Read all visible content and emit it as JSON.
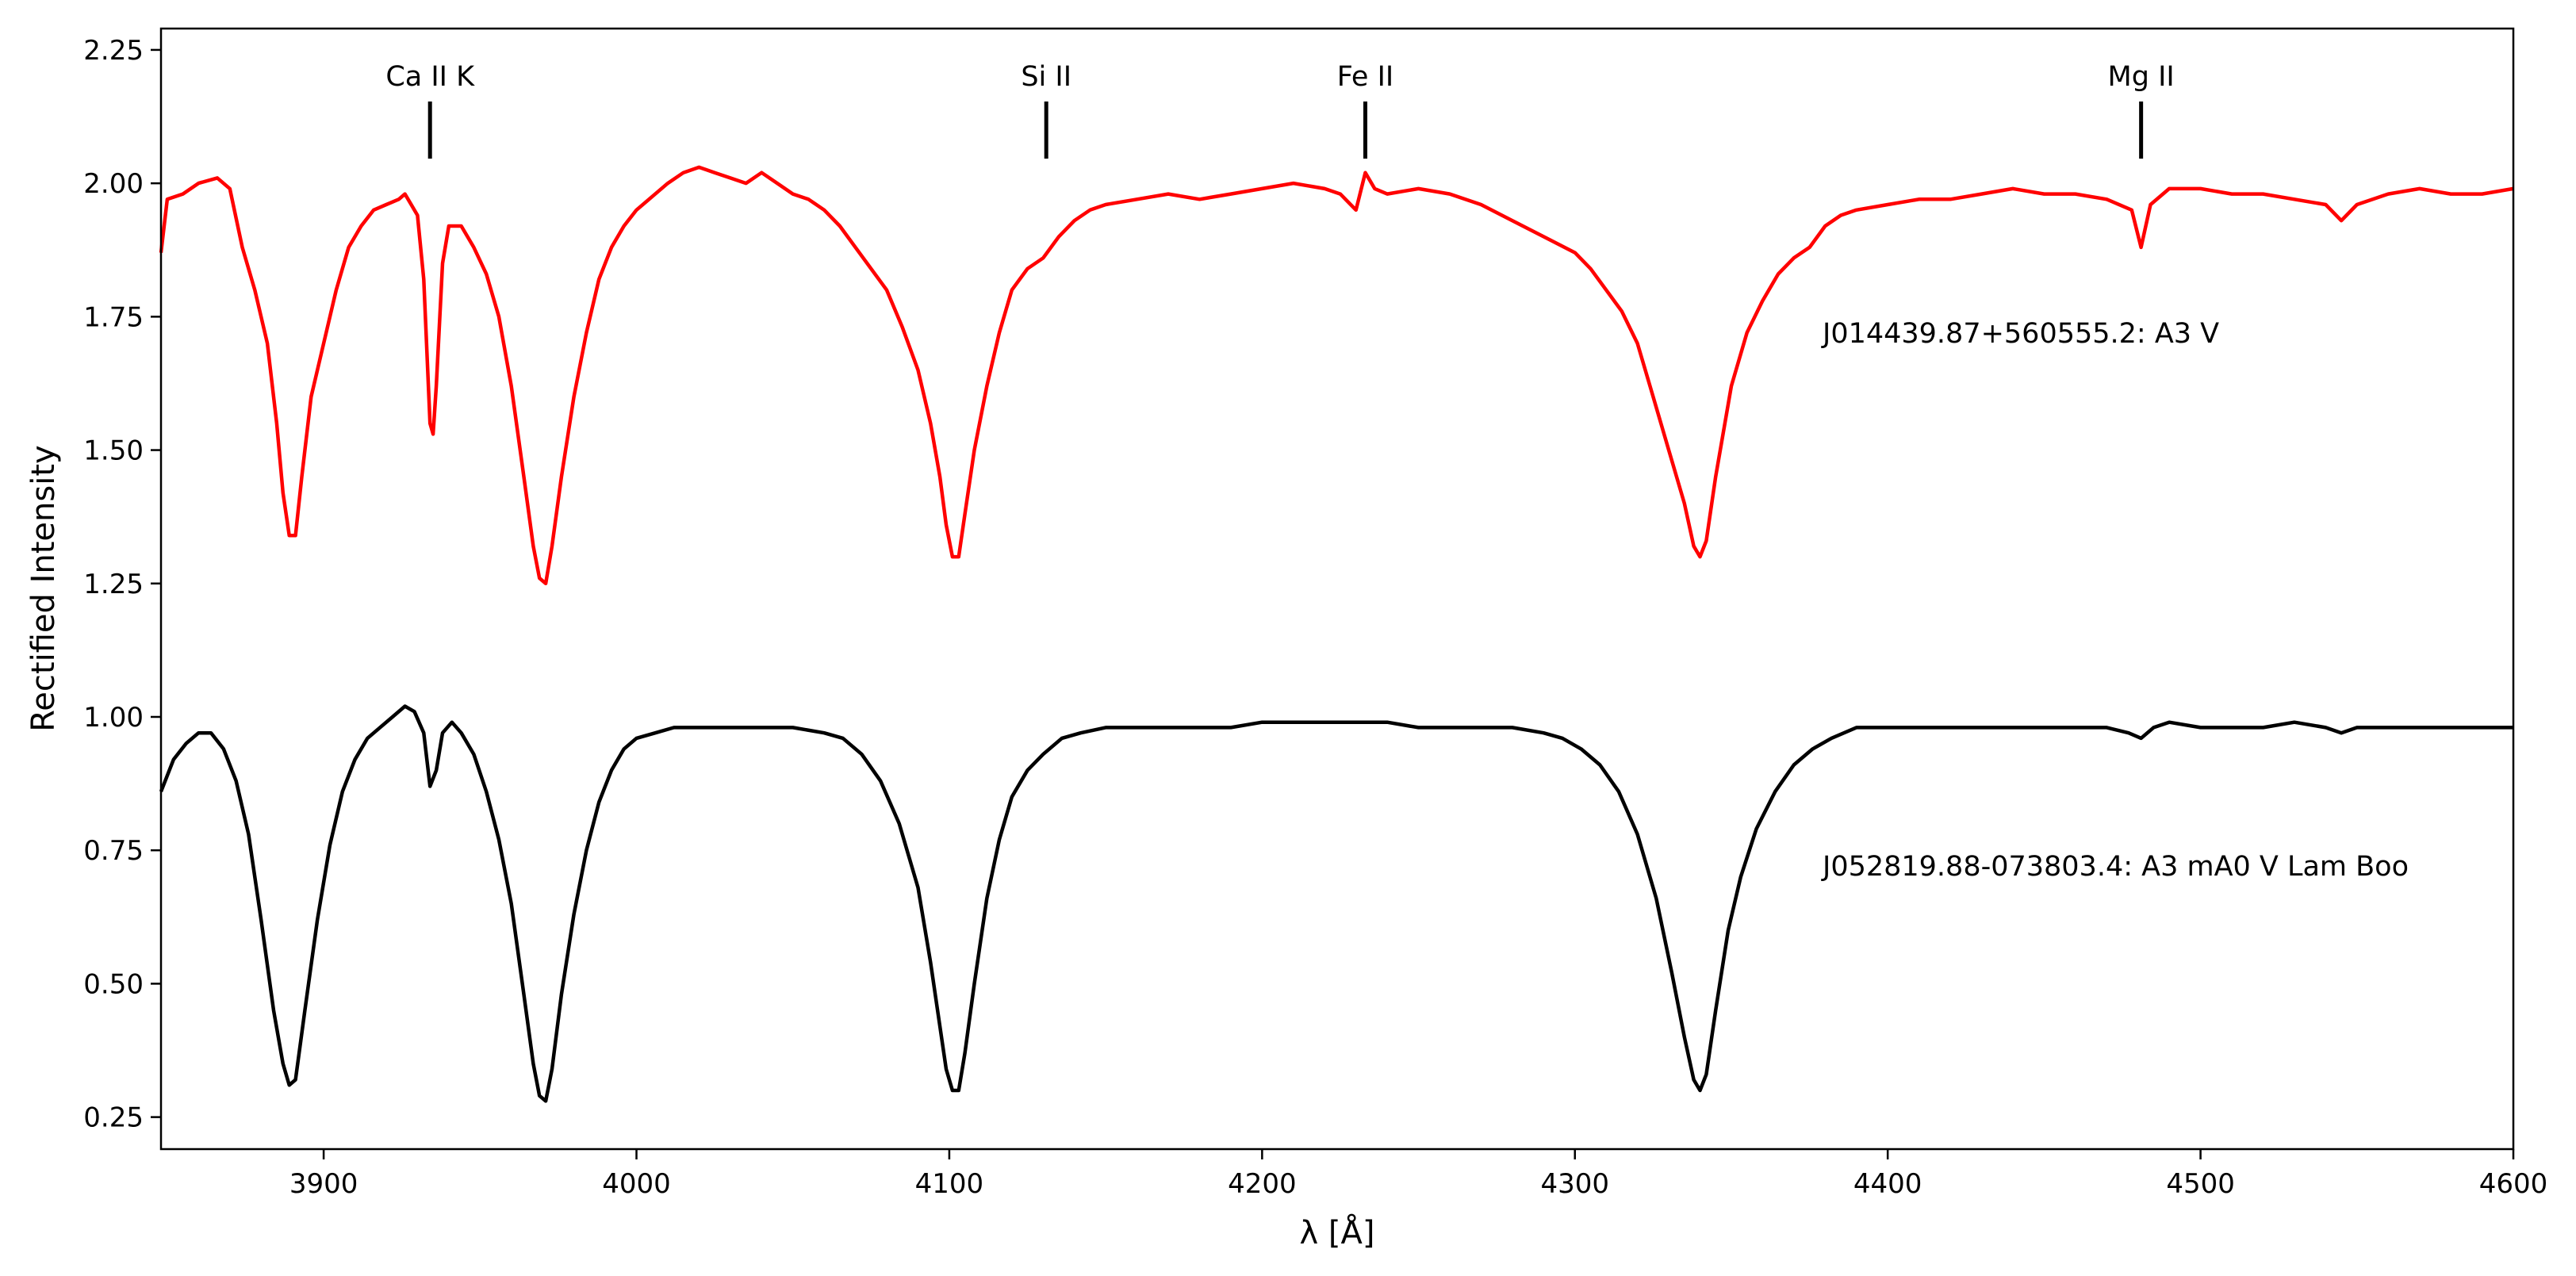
{
  "chart_data": {
    "type": "line",
    "xlabel": "λ [Å]",
    "ylabel": "Rectified Intensity",
    "xlim": [
      3848,
      4600
    ],
    "ylim": [
      0.19,
      2.29
    ],
    "x_ticks": [
      3900,
      4000,
      4100,
      4200,
      4300,
      4400,
      4500,
      4600
    ],
    "y_ticks": [
      "0.25",
      "0.50",
      "0.75",
      "1.00",
      "1.25",
      "1.50",
      "1.75",
      "2.00",
      "2.25"
    ],
    "grid": false,
    "legend": "none",
    "line_markers": [
      {
        "label": "Ca II K",
        "x": 3934
      },
      {
        "label": "Si II",
        "x": 4131
      },
      {
        "label": "Fe II",
        "x": 4233
      },
      {
        "label": "Mg II",
        "x": 4481
      }
    ],
    "series": [
      {
        "label": "J014439.87+560555.2: A3 V",
        "color": "#ff0000",
        "points": [
          [
            3848,
            1.87
          ],
          [
            3850,
            1.97
          ],
          [
            3855,
            1.98
          ],
          [
            3860,
            2.0
          ],
          [
            3866,
            2.01
          ],
          [
            3870,
            1.99
          ],
          [
            3874,
            1.88
          ],
          [
            3878,
            1.8
          ],
          [
            3882,
            1.7
          ],
          [
            3885,
            1.55
          ],
          [
            3887,
            1.42
          ],
          [
            3889,
            1.34
          ],
          [
            3891,
            1.34
          ],
          [
            3893,
            1.45
          ],
          [
            3896,
            1.6
          ],
          [
            3900,
            1.7
          ],
          [
            3904,
            1.8
          ],
          [
            3908,
            1.88
          ],
          [
            3912,
            1.92
          ],
          [
            3916,
            1.95
          ],
          [
            3920,
            1.96
          ],
          [
            3924,
            1.97
          ],
          [
            3926,
            1.98
          ],
          [
            3928,
            1.96
          ],
          [
            3930,
            1.94
          ],
          [
            3932,
            1.82
          ],
          [
            3934,
            1.55
          ],
          [
            3935,
            1.53
          ],
          [
            3936,
            1.62
          ],
          [
            3938,
            1.85
          ],
          [
            3940,
            1.92
          ],
          [
            3944,
            1.92
          ],
          [
            3948,
            1.88
          ],
          [
            3952,
            1.83
          ],
          [
            3956,
            1.75
          ],
          [
            3960,
            1.62
          ],
          [
            3964,
            1.45
          ],
          [
            3967,
            1.32
          ],
          [
            3969,
            1.26
          ],
          [
            3971,
            1.25
          ],
          [
            3973,
            1.32
          ],
          [
            3976,
            1.45
          ],
          [
            3980,
            1.6
          ],
          [
            3984,
            1.72
          ],
          [
            3988,
            1.82
          ],
          [
            3992,
            1.88
          ],
          [
            3996,
            1.92
          ],
          [
            4000,
            1.95
          ],
          [
            4006,
            1.98
          ],
          [
            4010,
            2.0
          ],
          [
            4015,
            2.02
          ],
          [
            4020,
            2.03
          ],
          [
            4025,
            2.02
          ],
          [
            4030,
            2.01
          ],
          [
            4035,
            2.0
          ],
          [
            4040,
            2.02
          ],
          [
            4045,
            2.0
          ],
          [
            4050,
            1.98
          ],
          [
            4055,
            1.97
          ],
          [
            4060,
            1.95
          ],
          [
            4065,
            1.92
          ],
          [
            4070,
            1.88
          ],
          [
            4075,
            1.84
          ],
          [
            4080,
            1.8
          ],
          [
            4085,
            1.73
          ],
          [
            4090,
            1.65
          ],
          [
            4094,
            1.55
          ],
          [
            4097,
            1.45
          ],
          [
            4099,
            1.36
          ],
          [
            4101,
            1.3
          ],
          [
            4103,
            1.3
          ],
          [
            4105,
            1.38
          ],
          [
            4108,
            1.5
          ],
          [
            4112,
            1.62
          ],
          [
            4116,
            1.72
          ],
          [
            4120,
            1.8
          ],
          [
            4125,
            1.84
          ],
          [
            4130,
            1.86
          ],
          [
            4135,
            1.9
          ],
          [
            4140,
            1.93
          ],
          [
            4145,
            1.95
          ],
          [
            4150,
            1.96
          ],
          [
            4160,
            1.97
          ],
          [
            4170,
            1.98
          ],
          [
            4180,
            1.97
          ],
          [
            4190,
            1.98
          ],
          [
            4200,
            1.99
          ],
          [
            4210,
            2.0
          ],
          [
            4220,
            1.99
          ],
          [
            4225,
            1.98
          ],
          [
            4230,
            1.95
          ],
          [
            4233,
            2.02
          ],
          [
            4236,
            1.99
          ],
          [
            4240,
            1.98
          ],
          [
            4250,
            1.99
          ],
          [
            4260,
            1.98
          ],
          [
            4270,
            1.96
          ],
          [
            4280,
            1.93
          ],
          [
            4290,
            1.9
          ],
          [
            4300,
            1.87
          ],
          [
            4305,
            1.84
          ],
          [
            4310,
            1.8
          ],
          [
            4315,
            1.76
          ],
          [
            4320,
            1.7
          ],
          [
            4325,
            1.6
          ],
          [
            4330,
            1.5
          ],
          [
            4335,
            1.4
          ],
          [
            4338,
            1.32
          ],
          [
            4340,
            1.3
          ],
          [
            4342,
            1.33
          ],
          [
            4345,
            1.45
          ],
          [
            4350,
            1.62
          ],
          [
            4355,
            1.72
          ],
          [
            4360,
            1.78
          ],
          [
            4365,
            1.83
          ],
          [
            4370,
            1.86
          ],
          [
            4375,
            1.88
          ],
          [
            4380,
            1.92
          ],
          [
            4385,
            1.94
          ],
          [
            4390,
            1.95
          ],
          [
            4400,
            1.96
          ],
          [
            4410,
            1.97
          ],
          [
            4420,
            1.97
          ],
          [
            4430,
            1.98
          ],
          [
            4440,
            1.99
          ],
          [
            4450,
            1.98
          ],
          [
            4460,
            1.98
          ],
          [
            4470,
            1.97
          ],
          [
            4478,
            1.95
          ],
          [
            4481,
            1.88
          ],
          [
            4484,
            1.96
          ],
          [
            4490,
            1.99
          ],
          [
            4500,
            1.99
          ],
          [
            4510,
            1.98
          ],
          [
            4520,
            1.98
          ],
          [
            4530,
            1.97
          ],
          [
            4540,
            1.96
          ],
          [
            4545,
            1.93
          ],
          [
            4550,
            1.96
          ],
          [
            4560,
            1.98
          ],
          [
            4570,
            1.99
          ],
          [
            4580,
            1.98
          ],
          [
            4590,
            1.98
          ],
          [
            4600,
            1.99
          ]
        ]
      },
      {
        "label": "J052819.88-073803.4: A3 mA0 V Lam Boo",
        "color": "#000000",
        "points": [
          [
            3848,
            0.86
          ],
          [
            3852,
            0.92
          ],
          [
            3856,
            0.95
          ],
          [
            3860,
            0.97
          ],
          [
            3864,
            0.97
          ],
          [
            3868,
            0.94
          ],
          [
            3872,
            0.88
          ],
          [
            3876,
            0.78
          ],
          [
            3880,
            0.62
          ],
          [
            3884,
            0.45
          ],
          [
            3887,
            0.35
          ],
          [
            3889,
            0.31
          ],
          [
            3891,
            0.32
          ],
          [
            3894,
            0.45
          ],
          [
            3898,
            0.62
          ],
          [
            3902,
            0.76
          ],
          [
            3906,
            0.86
          ],
          [
            3910,
            0.92
          ],
          [
            3914,
            0.96
          ],
          [
            3918,
            0.98
          ],
          [
            3922,
            1.0
          ],
          [
            3926,
            1.02
          ],
          [
            3929,
            1.01
          ],
          [
            3932,
            0.97
          ],
          [
            3934,
            0.87
          ],
          [
            3936,
            0.9
          ],
          [
            3938,
            0.97
          ],
          [
            3941,
            0.99
          ],
          [
            3944,
            0.97
          ],
          [
            3948,
            0.93
          ],
          [
            3952,
            0.86
          ],
          [
            3956,
            0.77
          ],
          [
            3960,
            0.65
          ],
          [
            3964,
            0.48
          ],
          [
            3967,
            0.35
          ],
          [
            3969,
            0.29
          ],
          [
            3971,
            0.28
          ],
          [
            3973,
            0.34
          ],
          [
            3976,
            0.48
          ],
          [
            3980,
            0.63
          ],
          [
            3984,
            0.75
          ],
          [
            3988,
            0.84
          ],
          [
            3992,
            0.9
          ],
          [
            3996,
            0.94
          ],
          [
            4000,
            0.96
          ],
          [
            4006,
            0.97
          ],
          [
            4012,
            0.98
          ],
          [
            4020,
            0.98
          ],
          [
            4030,
            0.98
          ],
          [
            4040,
            0.98
          ],
          [
            4050,
            0.98
          ],
          [
            4060,
            0.97
          ],
          [
            4066,
            0.96
          ],
          [
            4072,
            0.93
          ],
          [
            4078,
            0.88
          ],
          [
            4084,
            0.8
          ],
          [
            4090,
            0.68
          ],
          [
            4094,
            0.54
          ],
          [
            4097,
            0.42
          ],
          [
            4099,
            0.34
          ],
          [
            4101,
            0.3
          ],
          [
            4103,
            0.3
          ],
          [
            4105,
            0.37
          ],
          [
            4108,
            0.5
          ],
          [
            4112,
            0.66
          ],
          [
            4116,
            0.77
          ],
          [
            4120,
            0.85
          ],
          [
            4125,
            0.9
          ],
          [
            4130,
            0.93
          ],
          [
            4136,
            0.96
          ],
          [
            4142,
            0.97
          ],
          [
            4150,
            0.98
          ],
          [
            4160,
            0.98
          ],
          [
            4170,
            0.98
          ],
          [
            4180,
            0.98
          ],
          [
            4190,
            0.98
          ],
          [
            4200,
            0.99
          ],
          [
            4210,
            0.99
          ],
          [
            4220,
            0.99
          ],
          [
            4230,
            0.99
          ],
          [
            4240,
            0.99
          ],
          [
            4250,
            0.98
          ],
          [
            4260,
            0.98
          ],
          [
            4270,
            0.98
          ],
          [
            4280,
            0.98
          ],
          [
            4290,
            0.97
          ],
          [
            4296,
            0.96
          ],
          [
            4302,
            0.94
          ],
          [
            4308,
            0.91
          ],
          [
            4314,
            0.86
          ],
          [
            4320,
            0.78
          ],
          [
            4326,
            0.66
          ],
          [
            4331,
            0.52
          ],
          [
            4335,
            0.4
          ],
          [
            4338,
            0.32
          ],
          [
            4340,
            0.3
          ],
          [
            4342,
            0.33
          ],
          [
            4345,
            0.45
          ],
          [
            4349,
            0.6
          ],
          [
            4353,
            0.7
          ],
          [
            4358,
            0.79
          ],
          [
            4364,
            0.86
          ],
          [
            4370,
            0.91
          ],
          [
            4376,
            0.94
          ],
          [
            4382,
            0.96
          ],
          [
            4390,
            0.98
          ],
          [
            4400,
            0.98
          ],
          [
            4410,
            0.98
          ],
          [
            4420,
            0.98
          ],
          [
            4430,
            0.98
          ],
          [
            4440,
            0.98
          ],
          [
            4450,
            0.98
          ],
          [
            4460,
            0.98
          ],
          [
            4470,
            0.98
          ],
          [
            4477,
            0.97
          ],
          [
            4481,
            0.96
          ],
          [
            4485,
            0.98
          ],
          [
            4490,
            0.99
          ],
          [
            4500,
            0.98
          ],
          [
            4510,
            0.98
          ],
          [
            4520,
            0.98
          ],
          [
            4530,
            0.99
          ],
          [
            4540,
            0.98
          ],
          [
            4545,
            0.97
          ],
          [
            4550,
            0.98
          ],
          [
            4560,
            0.98
          ],
          [
            4570,
            0.98
          ],
          [
            4580,
            0.98
          ],
          [
            4590,
            0.98
          ],
          [
            4600,
            0.98
          ]
        ]
      }
    ]
  }
}
